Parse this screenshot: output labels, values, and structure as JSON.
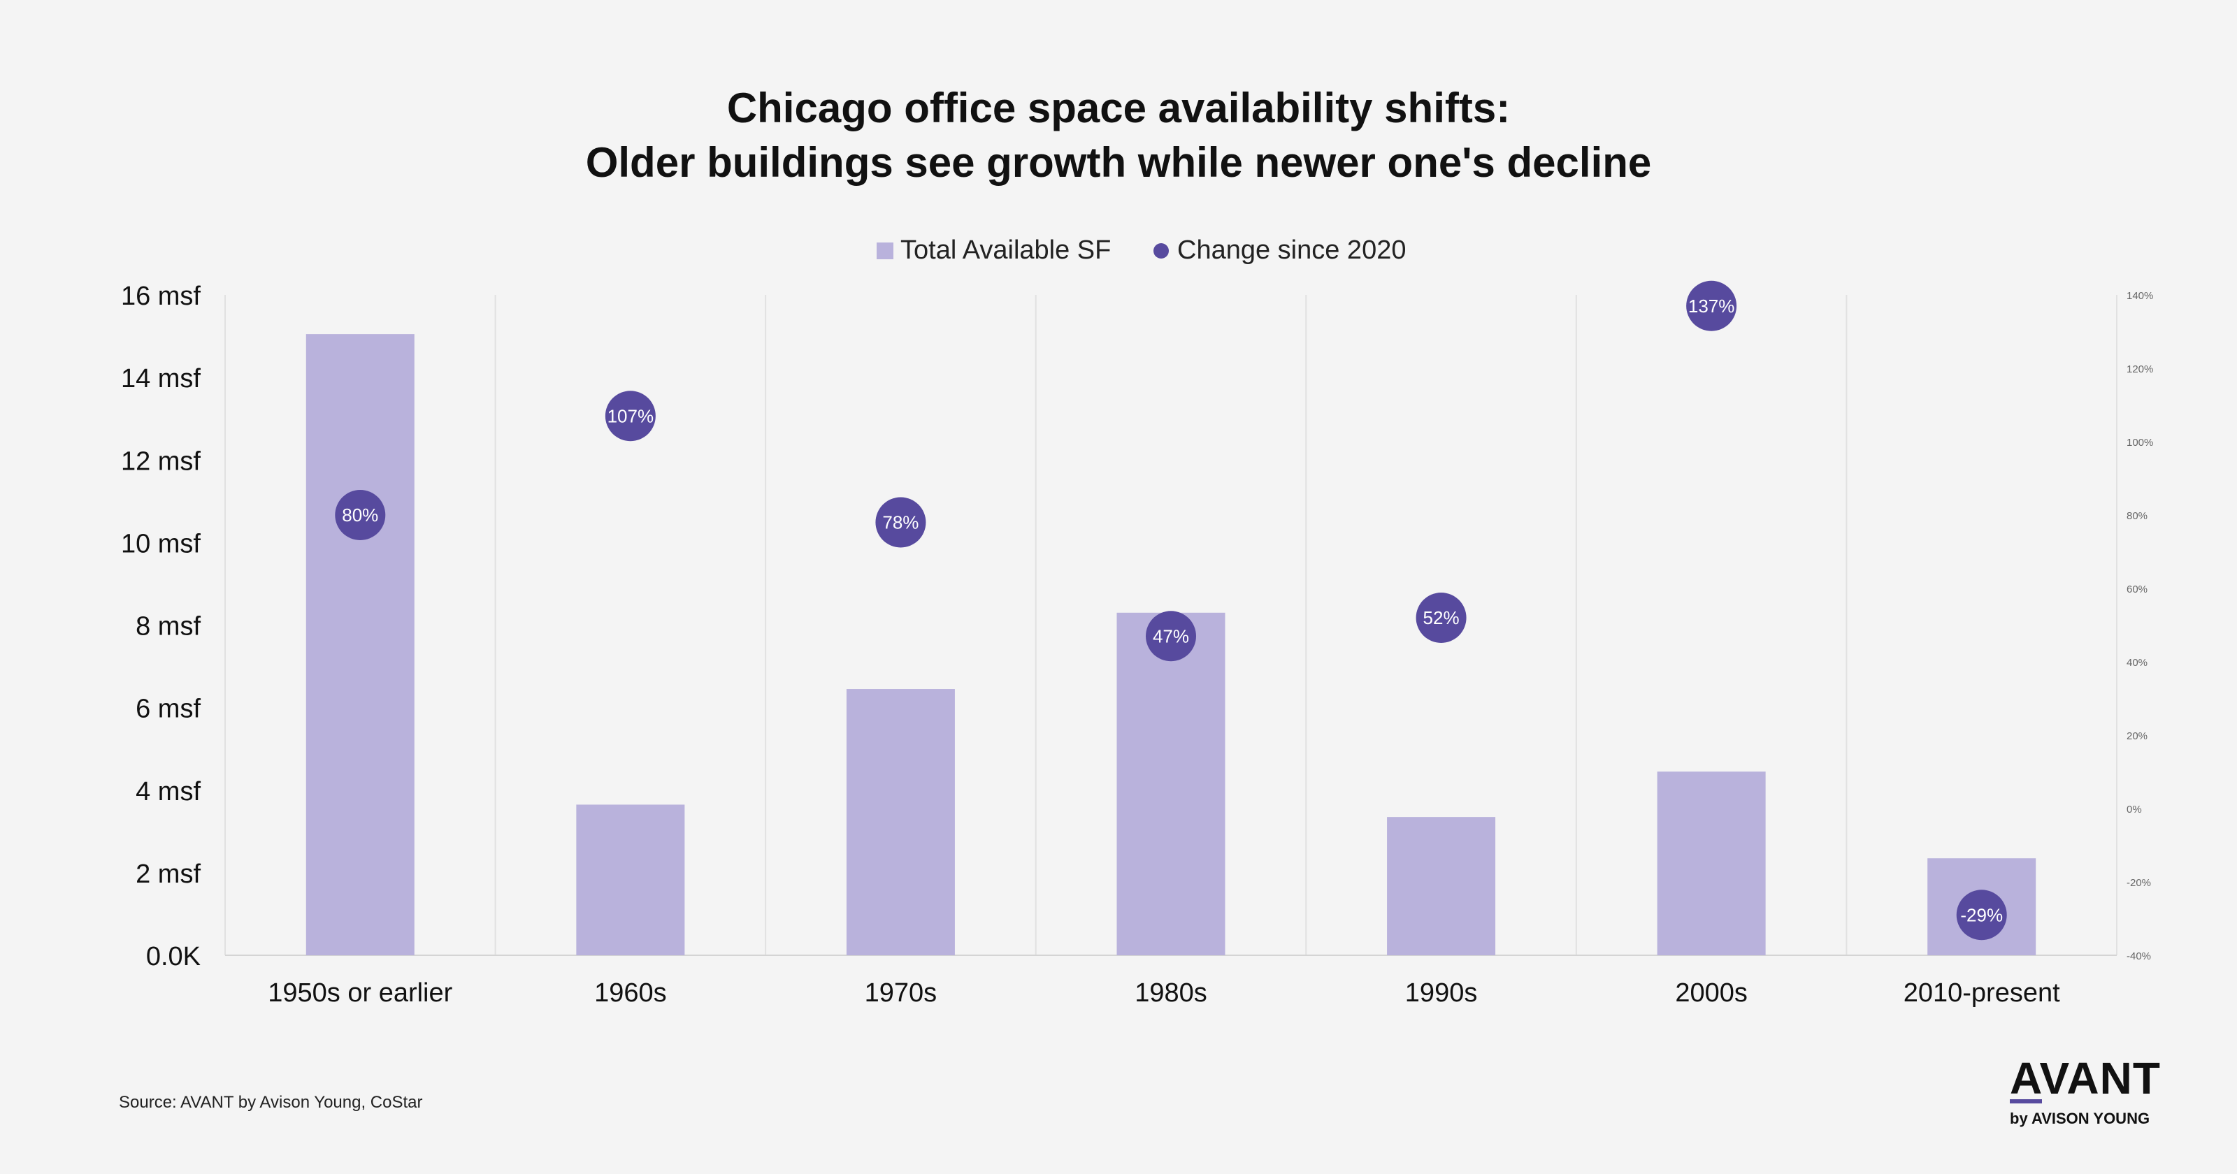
{
  "chart_data": {
    "type": "bar",
    "title": "Chicago office space availability shifts:\nOlder buildings see growth while newer one's decline",
    "categories": [
      "1950s or earlier",
      "1960s",
      "1970s",
      "1980s",
      "1990s",
      "2000s",
      "2010-present"
    ],
    "series": [
      {
        "name": "Total Available SF",
        "kind": "bar",
        "axis": "left",
        "values": [
          15.05,
          3.65,
          6.45,
          8.3,
          3.35,
          4.45,
          2.35
        ]
      },
      {
        "name": "Change since 2020",
        "kind": "scatter",
        "axis": "right",
        "values": [
          80,
          107,
          78,
          47,
          52,
          137,
          -29
        ],
        "labels": [
          "80%",
          "107%",
          "78%",
          "47%",
          "52%",
          "137%",
          "-29%"
        ]
      }
    ],
    "y_left": {
      "ylim": [
        0,
        16
      ],
      "ticks": [
        0,
        2,
        4,
        6,
        8,
        10,
        12,
        14,
        16
      ],
      "tick_labels": [
        "0.0K",
        "2 msf",
        "4 msf",
        "6 msf",
        "8 msf",
        "10 msf",
        "12 msf",
        "14 msf",
        "16 msf"
      ]
    },
    "y_right": {
      "ylim": [
        -40,
        140
      ],
      "ticks": [
        -40,
        -20,
        0,
        20,
        40,
        60,
        80,
        100,
        120,
        140
      ],
      "tick_labels": [
        "-40%",
        "-20%",
        "0%",
        "20%",
        "40%",
        "60%",
        "80%",
        "100%",
        "120%",
        "140%"
      ]
    },
    "legend_position": "top-center",
    "grid": "vertical category separators",
    "colors": {
      "bar": "#b9b2dc",
      "dot": "#574a9e",
      "dot_text": "#ffffff"
    }
  },
  "source": "Source: AVANT by Avison Young, CoStar",
  "logo": {
    "main": "AVANT",
    "sub": "by AVISON YOUNG",
    "accent": "#574a9e"
  }
}
